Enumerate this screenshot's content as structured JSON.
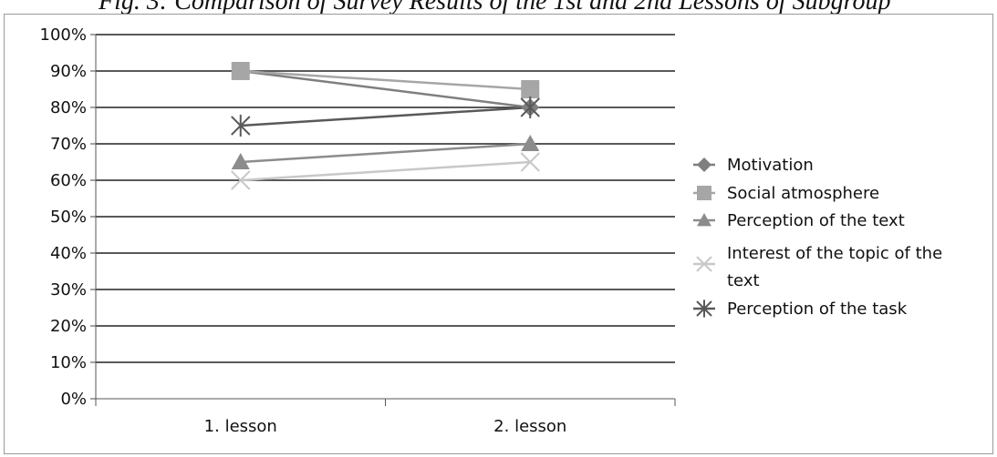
{
  "caption_text": "Fig. 3: Comparison of Survey Results of the 1st and 2nd Lessons of Subgroup",
  "chart_data": {
    "type": "line",
    "categories": [
      "1. lesson",
      "2. lesson"
    ],
    "yticks": [
      "0%",
      "10%",
      "20%",
      "30%",
      "40%",
      "50%",
      "60%",
      "70%",
      "80%",
      "90%",
      "100%"
    ],
    "ylim": [
      0,
      100
    ],
    "grid": true,
    "legend_position": "right",
    "series": [
      {
        "name": "Motivation",
        "values": [
          90,
          80
        ],
        "color": "#7f7f7f",
        "marker": "diamond"
      },
      {
        "name": "Social atmosphere",
        "values": [
          90,
          85
        ],
        "color": "#a6a6a6",
        "marker": "square"
      },
      {
        "name": "Perception of the text",
        "values": [
          65,
          70
        ],
        "color": "#8c8c8c",
        "marker": "triangle"
      },
      {
        "name": "Interest of the topic of the text",
        "legend_lines": [
          "Interest of the topic of the",
          "text"
        ],
        "values": [
          60,
          65
        ],
        "color": "#c8c8c8",
        "marker": "x"
      },
      {
        "name": "Perception of the task",
        "values": [
          75,
          80
        ],
        "color": "#595959",
        "marker": "asterisk"
      }
    ]
  }
}
